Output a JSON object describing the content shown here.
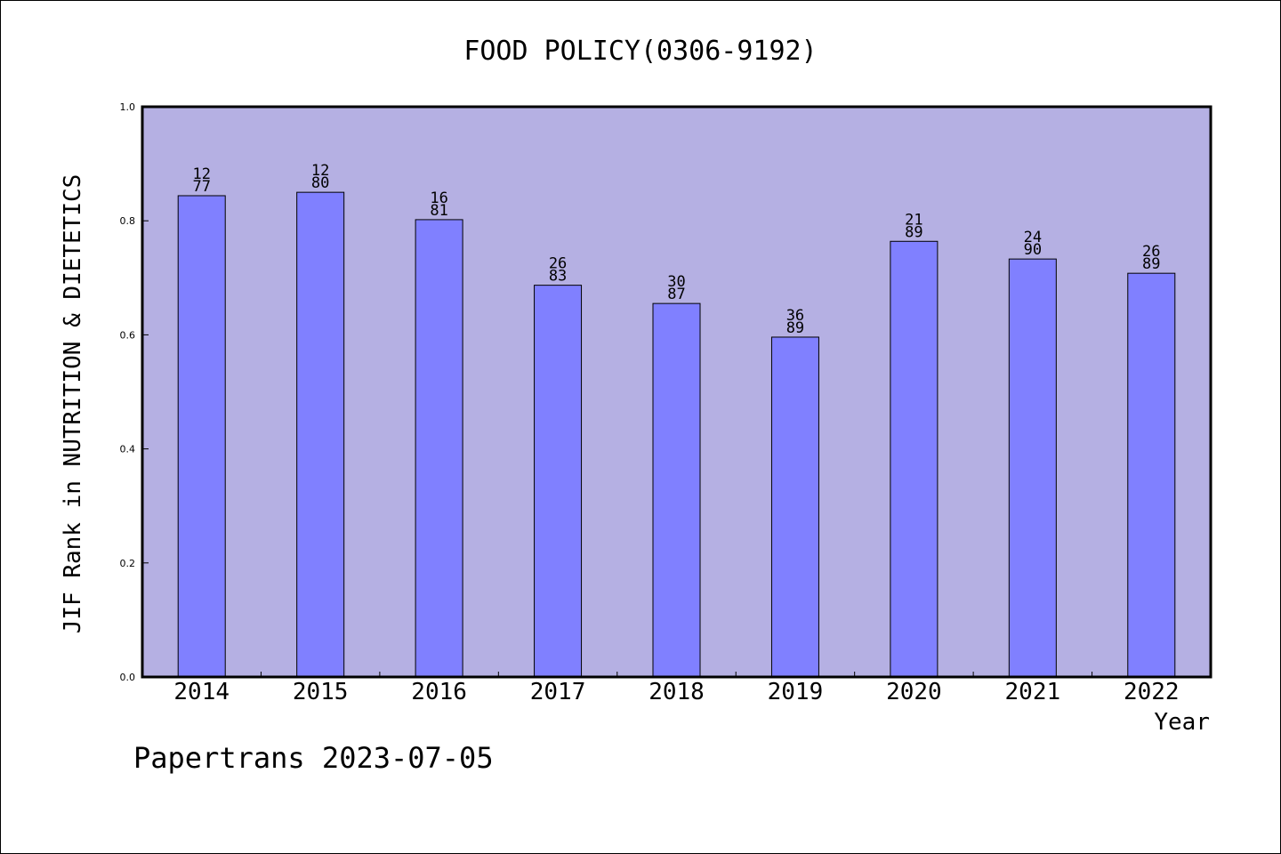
{
  "chart_data": {
    "type": "bar",
    "title": "FOOD POLICY(0306-9192)",
    "xlabel": "Year",
    "ylabel": "JIF Rank in NUTRITION & DIETETICS",
    "footer": "Papertrans 2023-07-05",
    "categories": [
      "2014",
      "2015",
      "2016",
      "2017",
      "2018",
      "2019",
      "2020",
      "2021",
      "2022"
    ],
    "values": [
      0.844,
      0.85,
      0.802,
      0.687,
      0.655,
      0.596,
      0.764,
      0.733,
      0.708
    ],
    "rank": [
      "12",
      "12",
      "16",
      "26",
      "30",
      "36",
      "21",
      "24",
      "26"
    ],
    "total": [
      "77",
      "80",
      "81",
      "83",
      "87",
      "89",
      "89",
      "90",
      "89"
    ],
    "ylim": [
      0,
      1.0
    ],
    "yticks": [
      "0.0",
      "0.2",
      "0.4",
      "0.6",
      "0.8",
      "1.0"
    ],
    "grid": false,
    "colors": {
      "plot_background": "#b5b0e3",
      "bar_fill": "#8080ff",
      "bar_stroke": "#000000"
    }
  }
}
